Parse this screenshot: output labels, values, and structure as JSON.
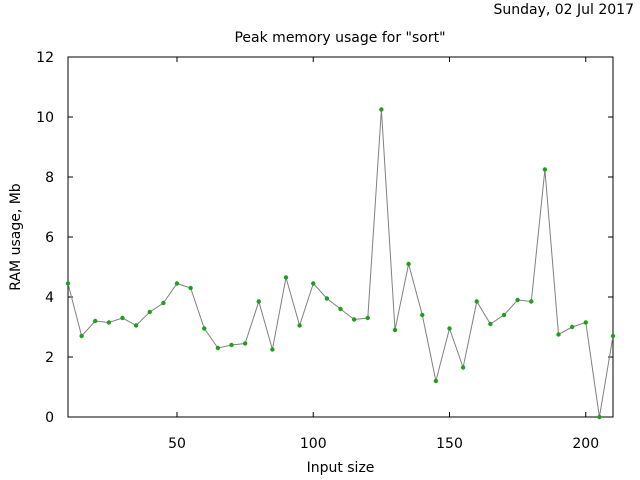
{
  "header": {
    "date": "Sunday, 02 Jul 2017"
  },
  "chart_data": {
    "type": "line",
    "title": "Peak memory usage for \"sort\"",
    "xlabel": "Input size",
    "ylabel": "RAM usage, Mb",
    "xlim": [
      10,
      210
    ],
    "ylim": [
      0,
      12
    ],
    "x_ticks": [
      50,
      100,
      150,
      200
    ],
    "y_ticks": [
      0,
      2,
      4,
      6,
      8,
      10,
      12
    ],
    "grid": false,
    "colors": {
      "line": "#808080",
      "marker": "#1f9d1f",
      "frame": "#000000"
    },
    "series": [
      {
        "x": [
          10,
          15,
          20,
          25,
          30,
          35,
          40,
          45,
          50,
          55,
          60,
          65,
          70,
          75,
          80,
          85,
          90,
          95,
          100,
          105,
          110,
          115,
          120,
          125,
          130,
          135,
          140,
          145,
          150,
          155,
          160,
          165,
          170,
          175,
          180,
          185,
          190,
          195,
          200,
          205,
          210
        ],
        "values": [
          4.45,
          2.7,
          3.2,
          3.15,
          3.3,
          3.05,
          3.5,
          3.8,
          4.45,
          4.3,
          2.95,
          2.3,
          2.4,
          2.45,
          3.85,
          2.25,
          4.65,
          3.05,
          4.45,
          3.95,
          3.6,
          3.25,
          3.3,
          10.25,
          2.9,
          5.1,
          3.4,
          1.2,
          2.95,
          1.65,
          3.85,
          3.1,
          3.4,
          3.9,
          3.85,
          8.25,
          2.75,
          3.0,
          3.15,
          0.0,
          2.7
        ]
      }
    ]
  }
}
